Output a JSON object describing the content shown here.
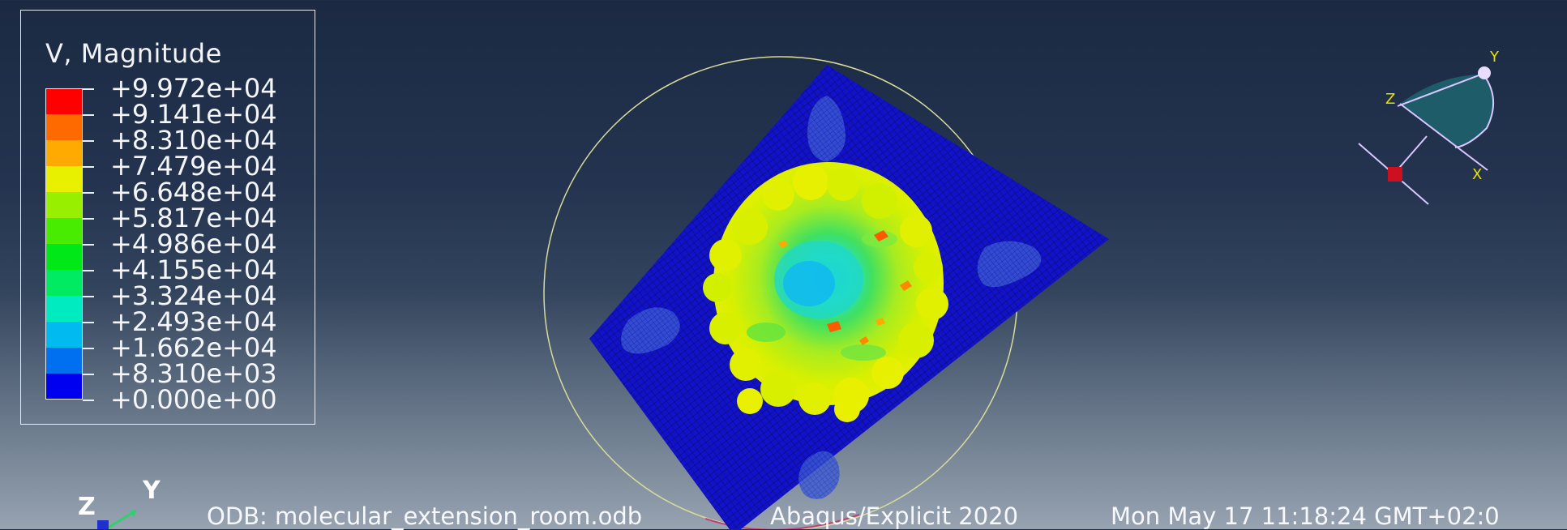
{
  "legend": {
    "title": "V, Magnitude",
    "entries": [
      {
        "label": "+9.972e+04",
        "color": "#ff0000"
      },
      {
        "label": "+9.141e+04",
        "color": "#ff6a00"
      },
      {
        "label": "+8.310e+04",
        "color": "#ffaa00"
      },
      {
        "label": "+7.479e+04",
        "color": "#e8f000"
      },
      {
        "label": "+6.648e+04",
        "color": "#98f000"
      },
      {
        "label": "+5.817e+04",
        "color": "#48ec00"
      },
      {
        "label": "+4.986e+04",
        "color": "#00e818"
      },
      {
        "label": "+4.155e+04",
        "color": "#00ea62"
      },
      {
        "label": "+3.324e+04",
        "color": "#00ecc0"
      },
      {
        "label": "+2.493e+04",
        "color": "#00baf0"
      },
      {
        "label": "+1.662e+04",
        "color": "#0070f0"
      },
      {
        "label": "+8.310e+03",
        "color": "#0020e8"
      },
      {
        "label": "+0.000e+00",
        "color": ""
      }
    ],
    "bottom_swatch_color": "#0000f0"
  },
  "status_bar": {
    "odb": "ODB: molecular_extension_room.odb",
    "solver": "Abaqus/Explicit 2020",
    "timestamp": "Mon May 17 11:18:24 GMT+02:0"
  },
  "triad": {
    "view_axes": {
      "x": "X",
      "y": "Y",
      "z": "Z"
    },
    "origin_axes": {
      "y": "Y",
      "z": "Z"
    }
  },
  "colors": {
    "plate": "#1010c8",
    "background_top": "#1b2a42",
    "background_bottom": "#97a3b1",
    "circle": "#d8dc9a",
    "triad_fill": "#1e5c6a"
  }
}
